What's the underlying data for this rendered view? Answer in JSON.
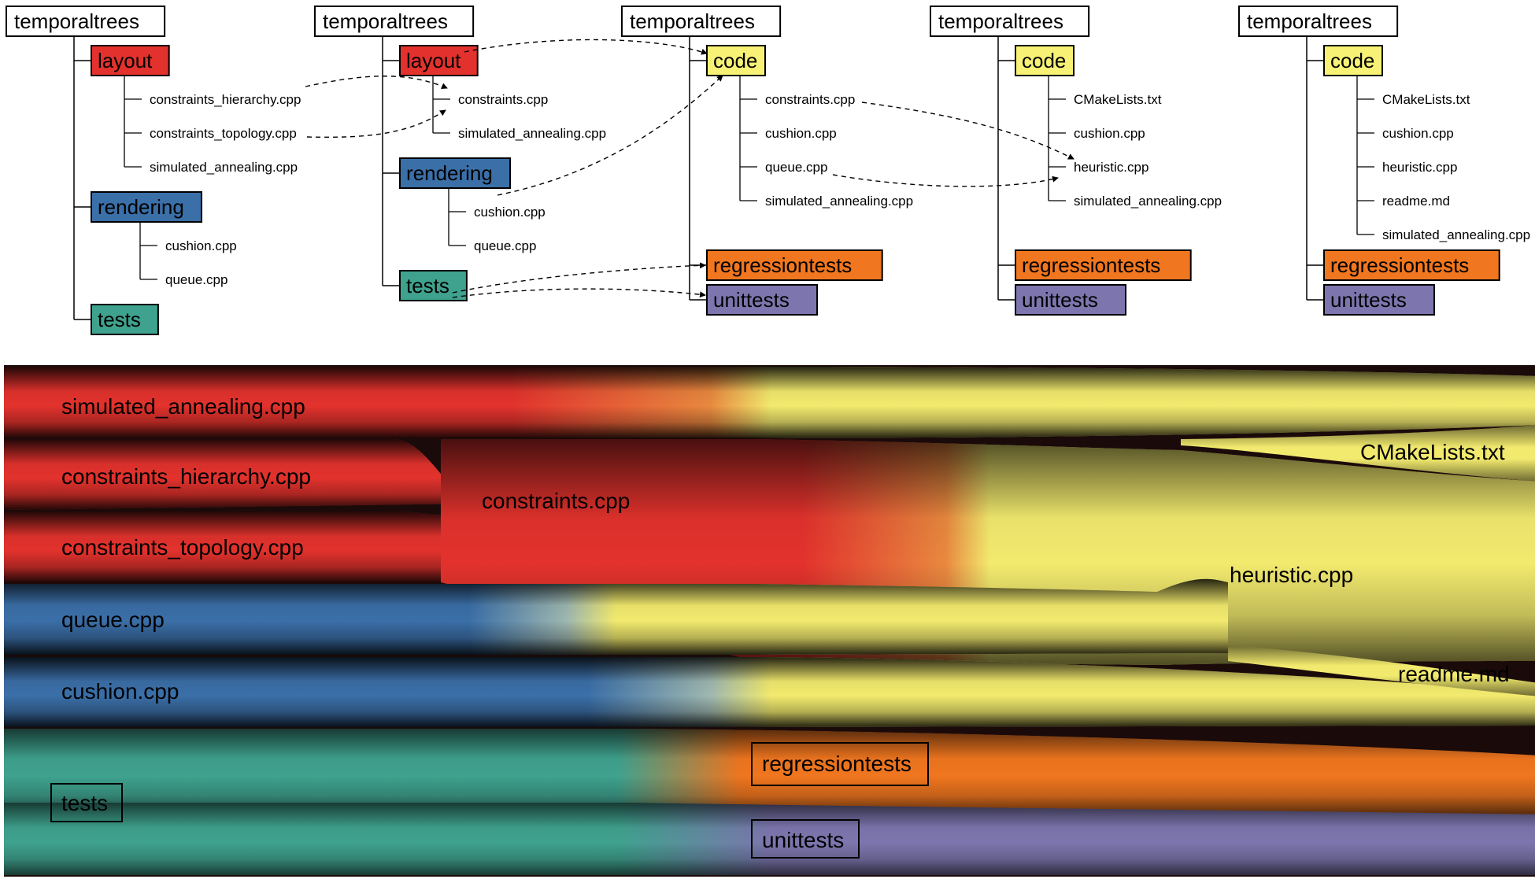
{
  "colors": {
    "root": "#ffffff",
    "layout": "#e3322d",
    "rendering": "#3b6fa8",
    "tests": "#3fa28e",
    "code": "#f7f276",
    "regressiontests": "#f0761f",
    "unittests": "#7d76ae",
    "stream_dark": "#1b0a0a"
  },
  "trees": [
    {
      "root": "temporaltrees",
      "folders": [
        {
          "name": "layout",
          "color_key": "layout",
          "files": [
            "constraints_hierarchy.cpp",
            "constraints_topology.cpp",
            "simulated_annealing.cpp"
          ]
        },
        {
          "name": "rendering",
          "color_key": "rendering",
          "files": [
            "cushion.cpp",
            "queue.cpp"
          ]
        },
        {
          "name": "tests",
          "color_key": "tests",
          "files": []
        }
      ]
    },
    {
      "root": "temporaltrees",
      "folders": [
        {
          "name": "layout",
          "color_key": "layout",
          "files": [
            "constraints.cpp",
            "simulated_annealing.cpp"
          ]
        },
        {
          "name": "rendering",
          "color_key": "rendering",
          "files": [
            "cushion.cpp",
            "queue.cpp"
          ]
        },
        {
          "name": "tests",
          "color_key": "tests",
          "files": []
        }
      ]
    },
    {
      "root": "temporaltrees",
      "folders": [
        {
          "name": "code",
          "color_key": "code",
          "files": [
            "constraints.cpp",
            "cushion.cpp",
            "queue.cpp",
            "simulated_annealing.cpp"
          ]
        },
        {
          "name": "regressiontests",
          "color_key": "regressiontests",
          "files": []
        },
        {
          "name": "unittests",
          "color_key": "unittests",
          "files": []
        }
      ]
    },
    {
      "root": "temporaltrees",
      "folders": [
        {
          "name": "code",
          "color_key": "code",
          "files": [
            "CMakeLists.txt",
            "cushion.cpp",
            "heuristic.cpp",
            "simulated_annealing.cpp"
          ]
        },
        {
          "name": "regressiontests",
          "color_key": "regressiontests",
          "files": []
        },
        {
          "name": "unittests",
          "color_key": "unittests",
          "files": []
        }
      ]
    },
    {
      "root": "temporaltrees",
      "folders": [
        {
          "name": "code",
          "color_key": "code",
          "files": [
            "CMakeLists.txt",
            "cushion.cpp",
            "heuristic.cpp",
            "readme.md",
            "simulated_annealing.cpp"
          ]
        },
        {
          "name": "regressiontests",
          "color_key": "regressiontests",
          "files": []
        },
        {
          "name": "unittests",
          "color_key": "unittests",
          "files": []
        }
      ]
    }
  ],
  "stream": {
    "labels": {
      "simulated_annealing": "simulated_annealing.cpp",
      "constraints_hierarchy": "constraints_hierarchy.cpp",
      "constraints_topology": "constraints_topology.cpp",
      "constraints": "constraints.cpp",
      "queue": "queue.cpp",
      "cushion": "cushion.cpp",
      "cmakelists": "CMakeLists.txt",
      "heuristic": "heuristic.cpp",
      "readme": "readme.md",
      "tests": "tests",
      "regressiontests": "regressiontests",
      "unittests": "unittests"
    }
  }
}
